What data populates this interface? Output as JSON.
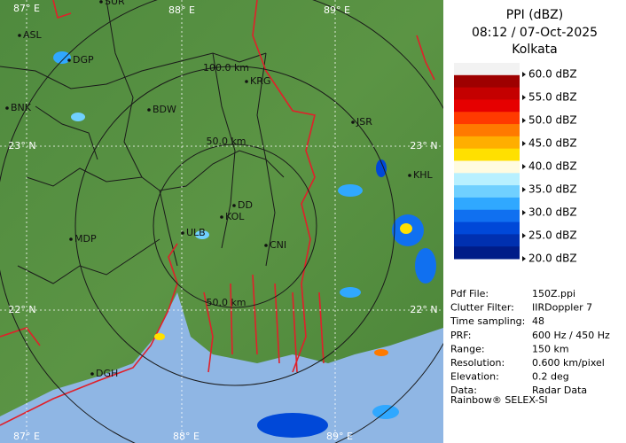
{
  "header": {
    "title": "PPI (dBZ)",
    "time": "08:12 / 07-Oct-2025",
    "station": "Kolkata"
  },
  "legend": {
    "levels": [
      "60.0 dBZ",
      "55.0 dBZ",
      "50.0 dBZ",
      "45.0 dBZ",
      "40.0 dBZ",
      "35.0 dBZ",
      "30.0 dBZ",
      "25.0 dBZ",
      "20.0 dBZ"
    ],
    "colors": [
      "#f2f2f2",
      "#9e0000",
      "#c40000",
      "#e60000",
      "#ff3a00",
      "#ff7a00",
      "#ffae00",
      "#ffe000",
      "#fffbe0",
      "#b8f0ff",
      "#70d0ff",
      "#30a8ff",
      "#1070f0",
      "#0048d8",
      "#0030b0",
      "#001c88"
    ]
  },
  "info": [
    {
      "label": "Pdf File:",
      "value": "150Z.ppi"
    },
    {
      "label": "Clutter Filter:",
      "value": "IIRDoppler 7"
    },
    {
      "label": "Time sampling:",
      "value": "48"
    },
    {
      "label": "PRF:",
      "value": "600 Hz / 450 Hz"
    },
    {
      "label": "Range:",
      "value": "150 km"
    },
    {
      "label": "Resolution:",
      "value": "0.600 km/pixel"
    },
    {
      "label": "Elevation:",
      "value": "0.2 deg"
    },
    {
      "label": "Data:",
      "value": "Radar Data"
    }
  ],
  "footer": "Rainbow® SELEX-SI",
  "map": {
    "grid_labels": [
      "87° E",
      "88° E",
      "89° E",
      "23° N",
      "22° N",
      "23° N",
      "22° N",
      "87° E",
      "88° E",
      "89° E"
    ],
    "ring_labels": [
      "100.0 km",
      "50.0 km",
      "50.0 km"
    ],
    "places": [
      "SUR",
      "ASL",
      "DGP",
      "KRG",
      "BDW",
      "BNK",
      "JSR",
      "KHL",
      "DD",
      "KOL",
      "ULB",
      "MDP",
      "CNI",
      "DGH"
    ]
  }
}
